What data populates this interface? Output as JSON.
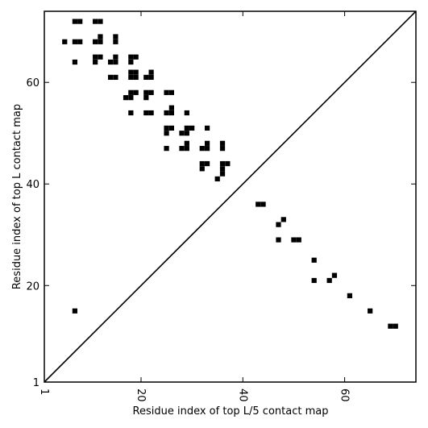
{
  "chart_data": {
    "type": "heatmap",
    "title": "",
    "xlabel": "Residue index of top L/5 contact map",
    "ylabel": "Residue index of top L contact map",
    "xlim": [
      1,
      74
    ],
    "ylim": [
      1,
      74
    ],
    "x_ticks": [
      1,
      20,
      40,
      60
    ],
    "y_ticks": [
      1,
      20,
      40,
      60
    ],
    "diagonal_line": true,
    "grid": false,
    "legend": "none",
    "colors": {
      "cell": "#000000",
      "background": "#ffffff",
      "axis": "#000000"
    },
    "upper_triangle_contacts": [
      [
        7,
        72
      ],
      [
        8,
        72
      ],
      [
        11,
        72
      ],
      [
        12,
        72
      ],
      [
        5,
        68
      ],
      [
        7,
        68
      ],
      [
        8,
        68
      ],
      [
        11,
        68
      ],
      [
        12,
        68
      ],
      [
        12,
        69
      ],
      [
        15,
        68
      ],
      [
        15,
        69
      ],
      [
        7,
        64
      ],
      [
        11,
        64
      ],
      [
        11,
        65
      ],
      [
        12,
        65
      ],
      [
        14,
        64
      ],
      [
        15,
        64
      ],
      [
        15,
        65
      ],
      [
        18,
        64
      ],
      [
        18,
        65
      ],
      [
        19,
        65
      ],
      [
        14,
        61
      ],
      [
        15,
        61
      ],
      [
        18,
        61
      ],
      [
        19,
        61
      ],
      [
        18,
        62
      ],
      [
        19,
        62
      ],
      [
        21,
        61
      ],
      [
        22,
        61
      ],
      [
        22,
        62
      ],
      [
        17,
        57
      ],
      [
        18,
        57
      ],
      [
        18,
        58
      ],
      [
        19,
        58
      ],
      [
        21,
        57
      ],
      [
        21,
        58
      ],
      [
        22,
        58
      ],
      [
        25,
        58
      ],
      [
        26,
        58
      ],
      [
        18,
        54
      ],
      [
        21,
        54
      ],
      [
        22,
        54
      ],
      [
        25,
        54
      ],
      [
        26,
        54
      ],
      [
        26,
        55
      ],
      [
        29,
        54
      ],
      [
        25,
        50
      ],
      [
        25,
        51
      ],
      [
        26,
        51
      ],
      [
        28,
        50
      ],
      [
        29,
        50
      ],
      [
        29,
        51
      ],
      [
        30,
        51
      ],
      [
        33,
        51
      ],
      [
        25,
        47
      ],
      [
        28,
        47
      ],
      [
        29,
        47
      ],
      [
        29,
        48
      ],
      [
        32,
        47
      ],
      [
        33,
        47
      ],
      [
        33,
        48
      ],
      [
        36,
        47
      ],
      [
        36,
        48
      ],
      [
        32,
        43
      ],
      [
        32,
        44
      ],
      [
        33,
        44
      ],
      [
        36,
        42
      ],
      [
        36,
        43
      ],
      [
        36,
        44
      ],
      [
        37,
        44
      ],
      [
        35,
        41
      ]
    ],
    "lower_triangle_contacts": [
      [
        43,
        36
      ],
      [
        44,
        36
      ],
      [
        47,
        32
      ],
      [
        48,
        33
      ],
      [
        47,
        29
      ],
      [
        50,
        29
      ],
      [
        51,
        29
      ],
      [
        54,
        25
      ],
      [
        54,
        21
      ],
      [
        57,
        21
      ],
      [
        58,
        22
      ],
      [
        61,
        18
      ],
      [
        65,
        15
      ],
      [
        69,
        12
      ],
      [
        70,
        12
      ],
      [
        7,
        15
      ]
    ]
  }
}
